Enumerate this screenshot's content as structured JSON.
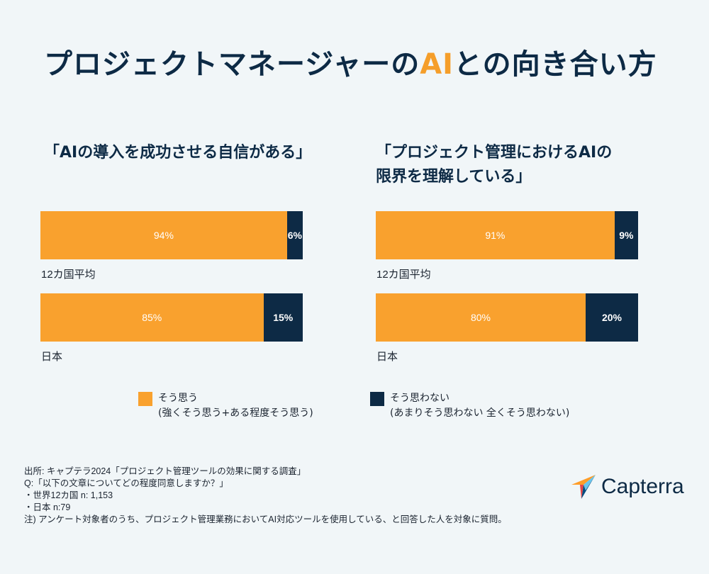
{
  "title": {
    "before": "プロジェクトマネージャーの",
    "highlight": "AI",
    "after": "との向き合い方"
  },
  "colors": {
    "agree": "#f9a12e",
    "disagree": "#0d2a45",
    "background": "#f1f6f8",
    "highlight": "#f59e2a"
  },
  "chart_data": [
    {
      "type": "bar",
      "orientation": "horizontal-stacked",
      "title_lines": [
        "「AIの導入を成功させる自信がある」"
      ],
      "categories": [
        "12カ国平均",
        "日本"
      ],
      "series": [
        {
          "name": "そう思う",
          "values": [
            94,
            85
          ],
          "labels": [
            "94%",
            "85%"
          ]
        },
        {
          "name": "そう思わない",
          "values": [
            6,
            15
          ],
          "labels": [
            "6%",
            "15%"
          ]
        }
      ],
      "xlim": [
        0,
        100
      ]
    },
    {
      "type": "bar",
      "orientation": "horizontal-stacked",
      "title_lines": [
        "「プロジェクト管理におけるAIの",
        "限界を理解している」"
      ],
      "categories": [
        "12カ国平均",
        "日本"
      ],
      "series": [
        {
          "name": "そう思う",
          "values": [
            91,
            80
          ],
          "labels": [
            "91%",
            "80%"
          ]
        },
        {
          "name": "そう思わない",
          "values": [
            9,
            20
          ],
          "labels": [
            "9%",
            "20%"
          ]
        }
      ],
      "xlim": [
        0,
        100
      ]
    }
  ],
  "legend": [
    {
      "label": "そう思う",
      "sub": "(強くそう思う+ある程度そう思う)"
    },
    {
      "label": "そう思わない",
      "sub": "(あまりそう思わない 全くそう思わない)"
    }
  ],
  "footnotes": [
    "出所: キャプテラ2024「プロジェクト管理ツールの効果に関する調査」",
    "Q:「以下の文章についてどの程度同意しますか？」",
    "・世界12カ国 n: 1,153",
    "・日本 n:79",
    "注)  アンケート対象者のうち、プロジェクト管理業務においてAI対応ツールを使用している、と回答した人を対象に質問。"
  ],
  "logo": {
    "text": "Capterra"
  }
}
